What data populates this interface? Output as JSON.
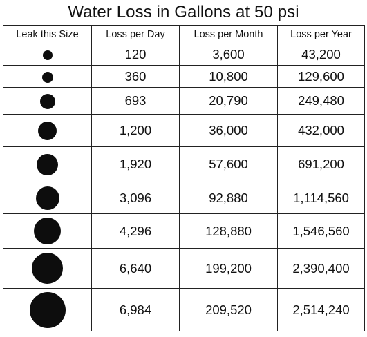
{
  "title": "Water Loss in Gallons at 50 psi",
  "colors": {
    "text": "#111111",
    "border": "#222222",
    "dot": "#0d0d0d"
  },
  "columns": [
    "Leak this Size",
    "Loss per Day",
    "Loss per Month",
    "Loss per Year"
  ],
  "rows": [
    {
      "leak_size": "leak-dot-1",
      "day": "120",
      "month": "3,600",
      "year": "43,200"
    },
    {
      "leak_size": "leak-dot-2",
      "day": "360",
      "month": "10,800",
      "year": "129,600"
    },
    {
      "leak_size": "leak-dot-3",
      "day": "693",
      "month": "20,790",
      "year": "249,480"
    },
    {
      "leak_size": "leak-dot-4",
      "day": "1,200",
      "month": "36,000",
      "year": "432,000"
    },
    {
      "leak_size": "leak-dot-5",
      "day": "1,920",
      "month": "57,600",
      "year": "691,200"
    },
    {
      "leak_size": "leak-dot-6",
      "day": "3,096",
      "month": "92,880",
      "year": "1,114,560"
    },
    {
      "leak_size": "leak-dot-7",
      "day": "4,296",
      "month": "128,880",
      "year": "1,546,560"
    },
    {
      "leak_size": "leak-dot-8",
      "day": "6,640",
      "month": "199,200",
      "year": "2,390,400"
    },
    {
      "leak_size": "leak-dot-9",
      "day": "6,984",
      "month": "209,520",
      "year": "2,514,240"
    }
  ]
}
